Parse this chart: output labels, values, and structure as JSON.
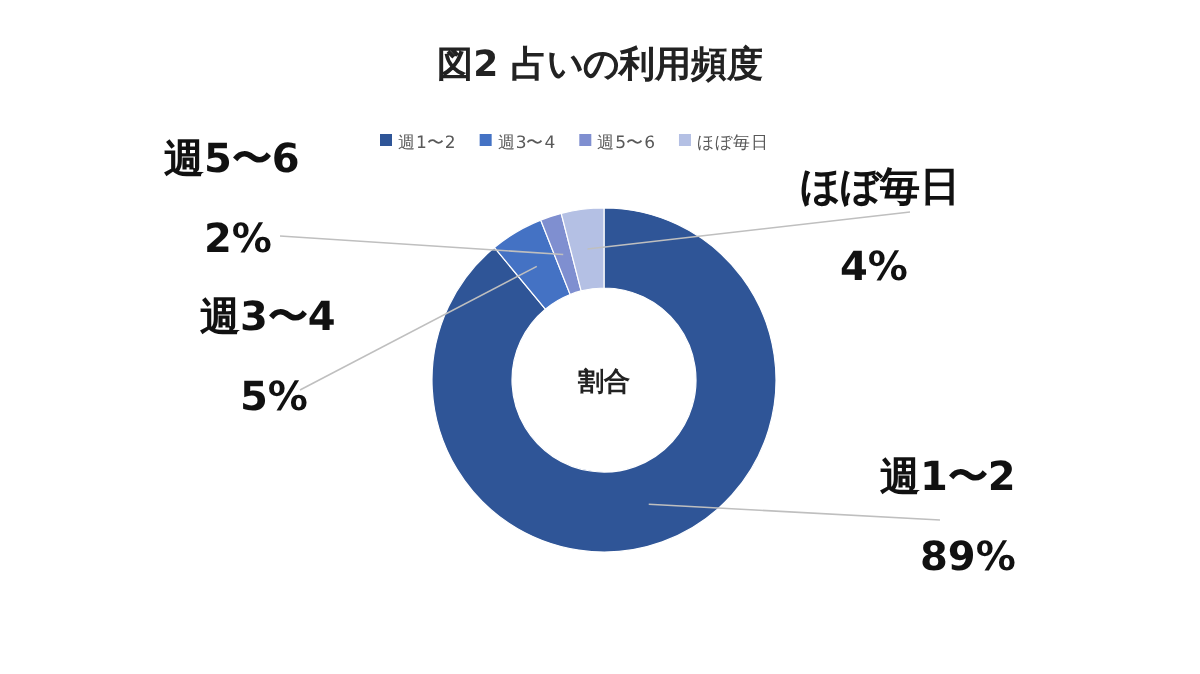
{
  "chart_data": {
    "type": "donut",
    "title": "図2 占いの利用頻度",
    "categories": [
      "週1〜2",
      "週3〜4",
      "週5〜6",
      "ほぼ毎日"
    ],
    "values": [
      89,
      5,
      2,
      4
    ],
    "colors": [
      "#2f5597",
      "#4472c4",
      "#7f8fd0",
      "#b4c0e4"
    ],
    "value_labels": [
      "89%",
      "5%",
      "2%",
      "4%"
    ],
    "legend": "top",
    "annotations": [
      "割合"
    ]
  }
}
